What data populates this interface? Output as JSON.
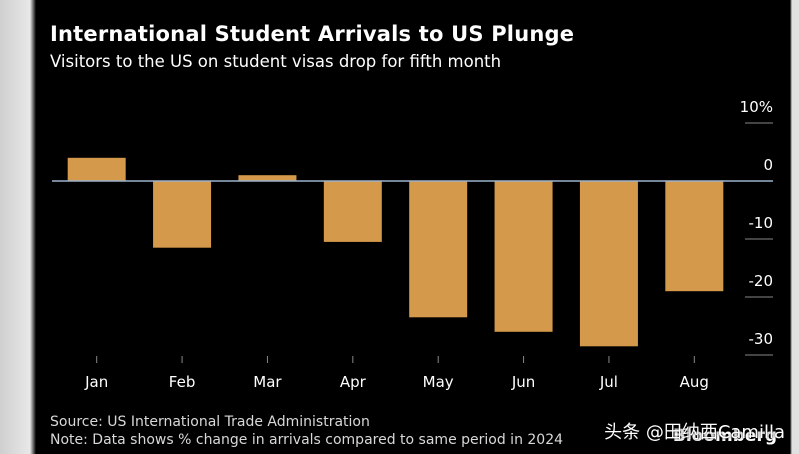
{
  "chart_data": {
    "type": "bar",
    "title": "International Student Arrivals to US Plunge",
    "subtitle": "Visitors to the US on student visas drop for fifth month",
    "categories": [
      "Jan",
      "Feb",
      "Mar",
      "Apr",
      "May",
      "Jun",
      "Jul",
      "Aug"
    ],
    "series": [
      {
        "name": "% change in arrivals vs same period in 2024",
        "values": [
          4,
          -11.5,
          1,
          -10.5,
          -23.5,
          -26,
          -28.5,
          -19
        ]
      }
    ],
    "ylim": [
      -30,
      10
    ],
    "yticks": [
      10,
      0,
      -10,
      -20,
      -30
    ],
    "ytick_labels": [
      "10%",
      "0",
      "-10",
      "-20",
      "-30"
    ],
    "xlabel": "",
    "ylabel": "",
    "colors": {
      "bar": "#d4994a",
      "zero_line": "#9db3cc",
      "grid": "#888888",
      "background": "#000000"
    }
  },
  "footer": {
    "source": "Source: US International Trade Administration",
    "note": "Note: Data shows % change in arrivals compared to same period in 2024",
    "brand": "Bloomberg",
    "watermark": "头条 @田纳西Camilla"
  }
}
